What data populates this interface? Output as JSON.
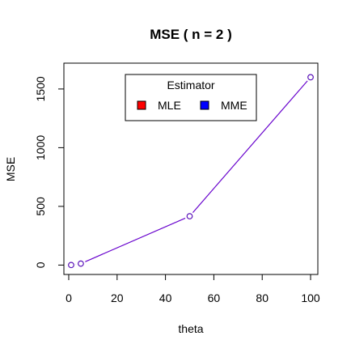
{
  "chart_data": {
    "type": "line",
    "title": "MSE ( n = 2 )",
    "xlabel": "theta",
    "ylabel": "MSE",
    "xlim": [
      -2,
      103
    ],
    "ylim": [
      -80,
      1720
    ],
    "x_ticks": [
      0,
      20,
      40,
      60,
      80,
      100
    ],
    "y_ticks": [
      0,
      500,
      1000,
      1500
    ],
    "x_tick_labels": [
      "0",
      "20",
      "40",
      "60",
      "80",
      "100"
    ],
    "y_tick_labels": [
      "0",
      "500",
      "1000",
      "1500"
    ],
    "grid": false,
    "legend": {
      "title": "Estimator",
      "placement": "top-center",
      "entries": [
        {
          "label": "MLE",
          "color": "#ff0000"
        },
        {
          "label": "MME",
          "color": "#0000ff"
        }
      ]
    },
    "line_color": "#6600cc",
    "x": [
      1,
      5,
      50,
      100
    ],
    "series": [
      {
        "name": "MLE",
        "color": "#ff0000",
        "values": [
          0.5,
          12.5,
          416,
          1600
        ]
      },
      {
        "name": "MME",
        "color": "#0000ff",
        "values": [
          0.5,
          12.5,
          416,
          1600
        ]
      }
    ]
  }
}
